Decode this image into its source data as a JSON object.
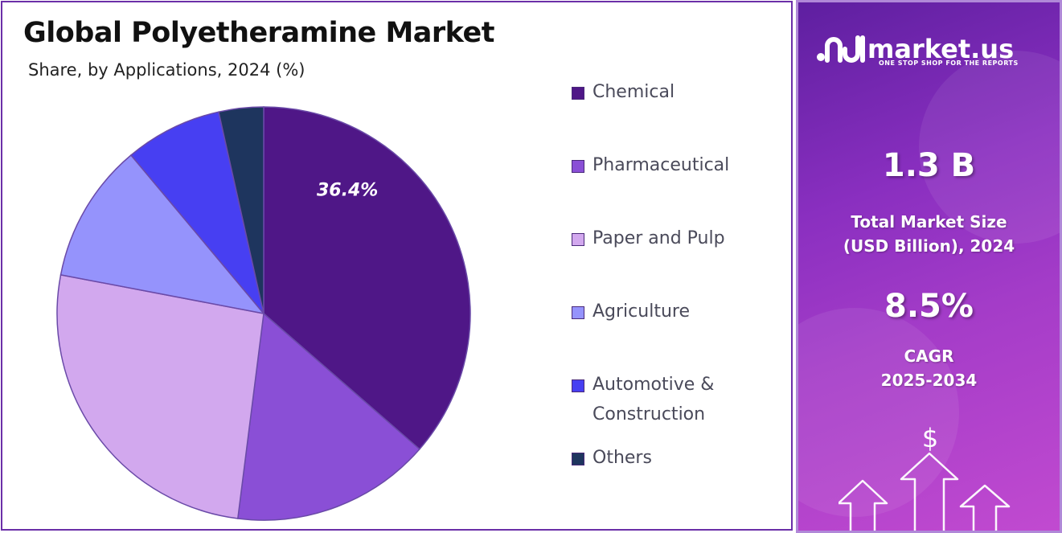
{
  "left": {
    "title": "Global Polyetheramine Market",
    "subtitle": "Share, by Applications, 2024 (%)"
  },
  "chart_data": {
    "type": "pie",
    "title": "Global Polyetheramine Market",
    "subtitle": "Share, by Applications, 2024 (%)",
    "categories": [
      "Chemical",
      "Pharmaceutical",
      "Paper and Pulp",
      "Agriculture",
      "Automotive & Construction",
      "Others"
    ],
    "values": [
      36.4,
      15.6,
      26.0,
      10.9,
      7.6,
      3.5
    ],
    "colors": [
      "#4f1787",
      "#8a4fd6",
      "#d2a8ee",
      "#9593fc",
      "#473ff2",
      "#1e355e"
    ],
    "data_labels": [
      "36.4%",
      "",
      "",
      "",
      "",
      ""
    ],
    "start_angle_deg": 0,
    "direction": "clockwise",
    "legend_position": "right"
  },
  "legend": {
    "items": [
      {
        "label": "Chemical",
        "label_line2": "",
        "color": "#4f1787"
      },
      {
        "label": "Pharmaceutical",
        "label_line2": "",
        "color": "#8a4fd6"
      },
      {
        "label": "Paper and Pulp",
        "label_line2": "",
        "color": "#d2a8ee"
      },
      {
        "label": "Agriculture",
        "label_line2": "",
        "color": "#9593fc"
      },
      {
        "label": "Automotive &",
        "label_line2": "Construction",
        "color": "#473ff2"
      },
      {
        "label": "Others",
        "label_line2": "",
        "color": "#1e355e"
      }
    ]
  },
  "sidebar": {
    "brand_name": "market.us",
    "brand_tagline": "ONE STOP SHOP FOR THE REPORTS",
    "market_size_value": "1.3 B",
    "market_size_label_1": "Total Market Size",
    "market_size_label_2": "(USD Billion), 2024",
    "cagr_value": "8.5%",
    "cagr_label_1": "CAGR",
    "cagr_label_2": "2025-2034",
    "dollar_symbol": "$"
  }
}
